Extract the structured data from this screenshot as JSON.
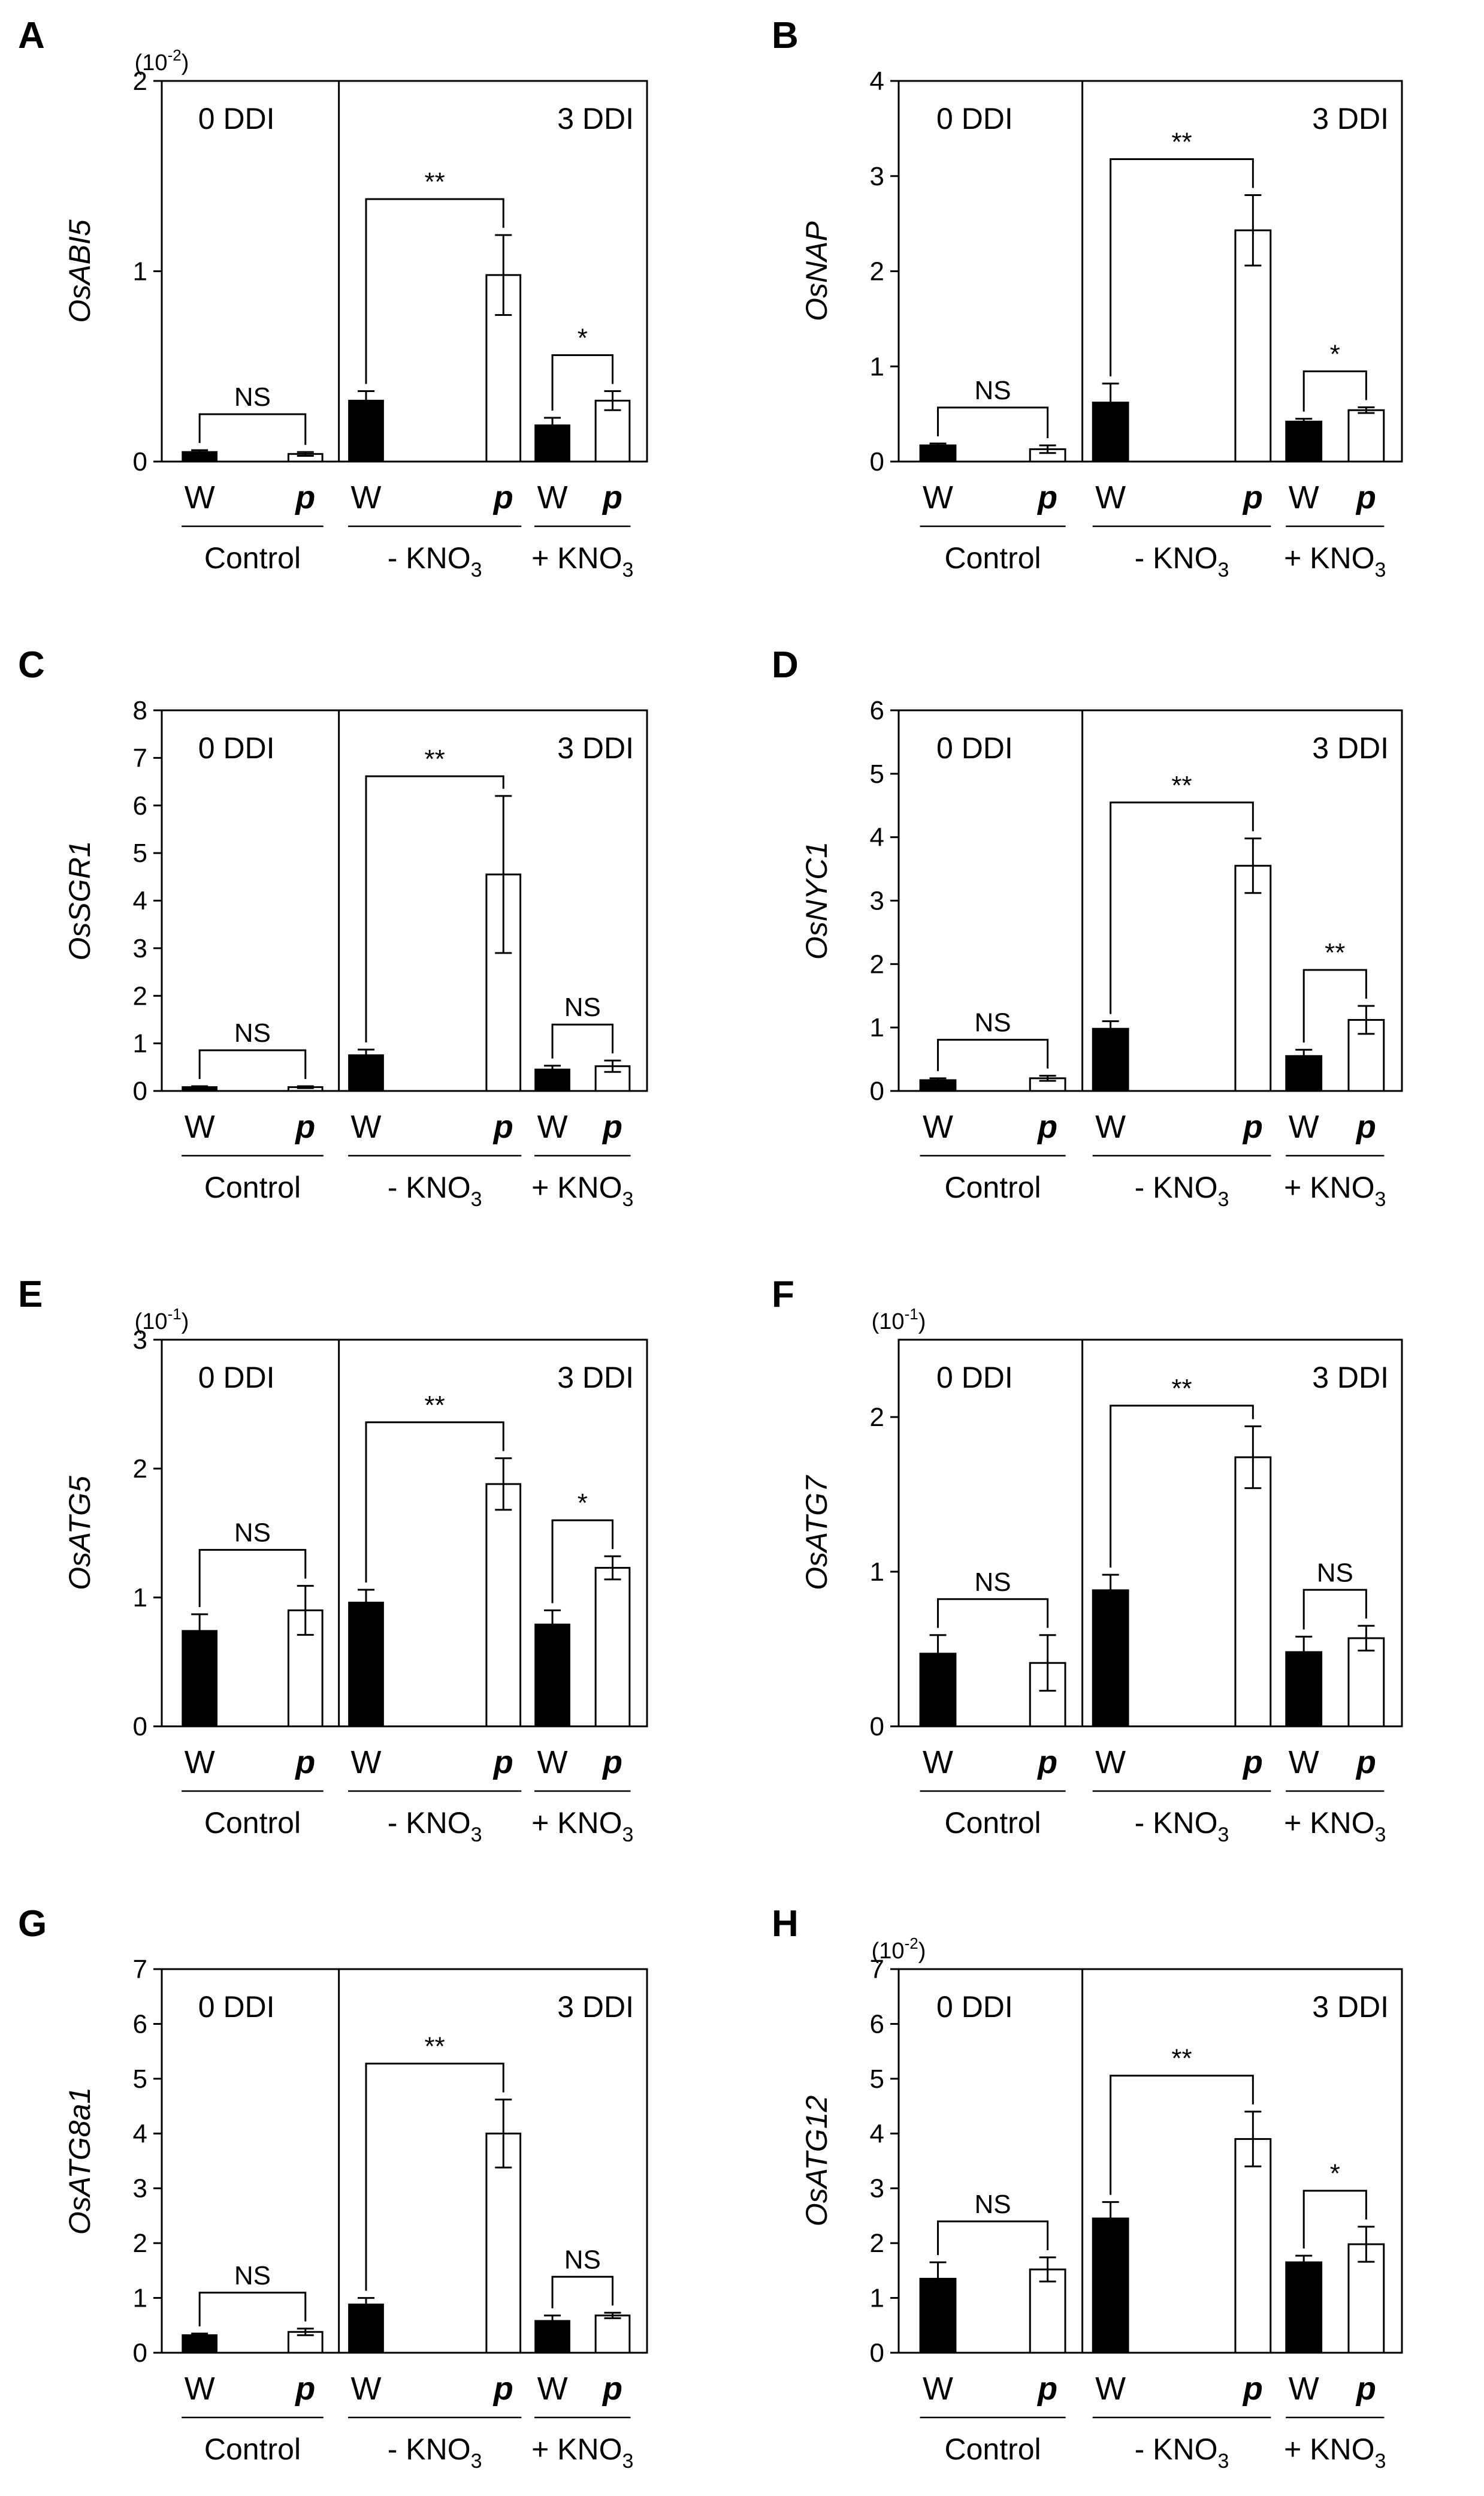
{
  "chart_data": [
    {
      "type": "bar",
      "panel_label": "A",
      "ylabel": "OsABI5",
      "scale_note": "(10",
      "scale_exp": "-2",
      "ylim": [
        0,
        2
      ],
      "yticks": [
        "0",
        "1",
        "2"
      ],
      "left_region_label": "0 DDI",
      "right_region_label": "3 DDI",
      "genotypes": [
        "W",
        "p"
      ],
      "groups": [
        "Control",
        "- KNO",
        "+ KNO"
      ],
      "group_subscripts": [
        "",
        "3",
        "3"
      ],
      "series": [
        {
          "values": [
            0.05,
            0.32,
            0.19
          ],
          "errors": [
            0.01,
            0.05,
            0.04
          ]
        },
        {
          "values": [
            0.04,
            0.98,
            0.32
          ],
          "errors": [
            0.01,
            0.21,
            0.05
          ]
        }
      ],
      "significance": [
        "NS",
        "**",
        "*"
      ]
    },
    {
      "type": "bar",
      "panel_label": "B",
      "ylabel": "OsNAP",
      "scale_note": "",
      "scale_exp": "",
      "ylim": [
        0,
        4
      ],
      "yticks": [
        "0",
        "1",
        "2",
        "3",
        "4"
      ],
      "left_region_label": "0 DDI",
      "right_region_label": "3 DDI",
      "genotypes": [
        "W",
        "p"
      ],
      "groups": [
        "Control",
        "- KNO",
        "+ KNO"
      ],
      "group_subscripts": [
        "",
        "3",
        "3"
      ],
      "series": [
        {
          "values": [
            0.17,
            0.62,
            0.42
          ],
          "errors": [
            0.02,
            0.2,
            0.03
          ]
        },
        {
          "values": [
            0.13,
            2.43,
            0.54
          ],
          "errors": [
            0.04,
            0.37,
            0.03
          ]
        }
      ],
      "significance": [
        "NS",
        "**",
        "*"
      ]
    },
    {
      "type": "bar",
      "panel_label": "C",
      "ylabel": "OsSGR1",
      "scale_note": "",
      "scale_exp": "",
      "ylim": [
        0,
        8
      ],
      "yticks": [
        "0",
        "1",
        "2",
        "3",
        "4",
        "5",
        "6",
        "7",
        "8"
      ],
      "left_region_label": "0 DDI",
      "right_region_label": "3 DDI",
      "genotypes": [
        "W",
        "p"
      ],
      "groups": [
        "Control",
        "- KNO",
        "+ KNO"
      ],
      "group_subscripts": [
        "",
        "3",
        "3"
      ],
      "series": [
        {
          "values": [
            0.08,
            0.75,
            0.45
          ],
          "errors": [
            0.02,
            0.12,
            0.08
          ]
        },
        {
          "values": [
            0.08,
            4.55,
            0.52
          ],
          "errors": [
            0.02,
            1.65,
            0.12
          ]
        }
      ],
      "significance": [
        "NS",
        "**",
        "NS"
      ]
    },
    {
      "type": "bar",
      "panel_label": "D",
      "ylabel": "OsNYC1",
      "scale_note": "",
      "scale_exp": "",
      "ylim": [
        0,
        6
      ],
      "yticks": [
        "0",
        "1",
        "2",
        "3",
        "4",
        "5",
        "6"
      ],
      "left_region_label": "0 DDI",
      "right_region_label": "3 DDI",
      "genotypes": [
        "W",
        "p"
      ],
      "groups": [
        "Control",
        "- KNO",
        "+ KNO"
      ],
      "group_subscripts": [
        "",
        "3",
        "3"
      ],
      "series": [
        {
          "values": [
            0.17,
            0.98,
            0.55
          ],
          "errors": [
            0.03,
            0.12,
            0.1
          ]
        },
        {
          "values": [
            0.2,
            3.55,
            1.12
          ],
          "errors": [
            0.04,
            0.43,
            0.22
          ]
        }
      ],
      "significance": [
        "NS",
        "**",
        "**"
      ]
    },
    {
      "type": "bar",
      "panel_label": "E",
      "ylabel": "OsATG5",
      "scale_note": "(10",
      "scale_exp": "-1",
      "ylim": [
        0,
        3
      ],
      "yticks": [
        "0",
        "1",
        "2",
        "3"
      ],
      "left_region_label": "0 DDI",
      "right_region_label": "3 DDI",
      "genotypes": [
        "W",
        "p"
      ],
      "groups": [
        "Control",
        "- KNO",
        "+ KNO"
      ],
      "group_subscripts": [
        "",
        "3",
        "3"
      ],
      "series": [
        {
          "values": [
            0.74,
            0.96,
            0.79
          ],
          "errors": [
            0.13,
            0.1,
            0.11
          ]
        },
        {
          "values": [
            0.9,
            1.88,
            1.23
          ],
          "errors": [
            0.19,
            0.2,
            0.09
          ]
        }
      ],
      "significance": [
        "NS",
        "**",
        "*"
      ]
    },
    {
      "type": "bar",
      "panel_label": "F",
      "ylabel": "OsATG7",
      "scale_note": "(10",
      "scale_exp": "-1",
      "ylim": [
        0,
        2.5
      ],
      "yticks": [
        "0",
        "1",
        "2"
      ],
      "left_region_label": "0 DDI",
      "right_region_label": "3 DDI",
      "genotypes": [
        "W",
        "p"
      ],
      "groups": [
        "Control",
        "- KNO",
        "+ KNO"
      ],
      "group_subscripts": [
        "",
        "3",
        "3"
      ],
      "series": [
        {
          "values": [
            0.47,
            0.88,
            0.48
          ],
          "errors": [
            0.12,
            0.1,
            0.1
          ]
        },
        {
          "values": [
            0.41,
            1.74,
            0.57
          ],
          "errors": [
            0.18,
            0.2,
            0.08
          ]
        }
      ],
      "significance": [
        "NS",
        "**",
        "NS"
      ]
    },
    {
      "type": "bar",
      "panel_label": "G",
      "ylabel": "OsATG8a1",
      "scale_note": "",
      "scale_exp": "",
      "ylim": [
        0,
        7
      ],
      "yticks": [
        "0",
        "1",
        "2",
        "3",
        "4",
        "5",
        "6",
        "7"
      ],
      "left_region_label": "0 DDI",
      "right_region_label": "3 DDI",
      "genotypes": [
        "W",
        "p"
      ],
      "groups": [
        "Control",
        "- KNO",
        "+ KNO"
      ],
      "group_subscripts": [
        "",
        "3",
        "3"
      ],
      "series": [
        {
          "values": [
            0.32,
            0.88,
            0.58
          ],
          "errors": [
            0.03,
            0.12,
            0.1
          ]
        },
        {
          "values": [
            0.38,
            4.0,
            0.68
          ],
          "errors": [
            0.06,
            0.62,
            0.05
          ]
        }
      ],
      "significance": [
        "NS",
        "**",
        "NS"
      ]
    },
    {
      "type": "bar",
      "panel_label": "H",
      "ylabel": "OsATG12",
      "scale_note": "(10",
      "scale_exp": "-2",
      "ylim": [
        0,
        7
      ],
      "yticks": [
        "0",
        "1",
        "2",
        "3",
        "4",
        "5",
        "6",
        "7"
      ],
      "left_region_label": "0 DDI",
      "right_region_label": "3 DDI",
      "genotypes": [
        "W",
        "p"
      ],
      "groups": [
        "Control",
        "- KNO",
        "+ KNO"
      ],
      "group_subscripts": [
        "",
        "3",
        "3"
      ],
      "series": [
        {
          "values": [
            1.35,
            2.45,
            1.65
          ],
          "errors": [
            0.3,
            0.3,
            0.12
          ]
        },
        {
          "values": [
            1.52,
            3.9,
            1.98
          ],
          "errors": [
            0.22,
            0.5,
            0.32
          ]
        }
      ],
      "significance": [
        "NS",
        "**",
        "*"
      ]
    }
  ],
  "colors": {
    "wild_type_bar": "#000000",
    "mutant_bar": "#ffffff",
    "ink": "#000000"
  }
}
